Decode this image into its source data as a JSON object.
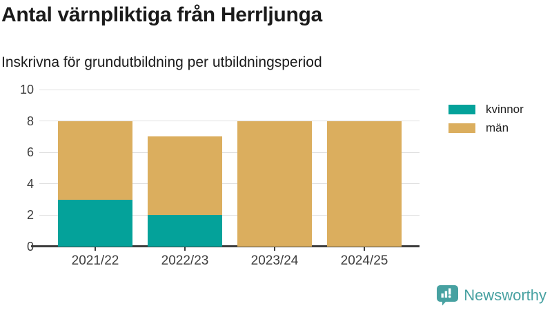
{
  "header": {
    "title": "Antal värnpliktiga från Herrljunga",
    "subtitle": "Inskrivna för grundutbildning per utbildningsperiod"
  },
  "chart_data": {
    "type": "bar",
    "stacked": true,
    "title": "Antal värnpliktiga från Herrljunga",
    "subtitle": "Inskrivna för grundutbildning per utbildningsperiod",
    "categories": [
      "2021/22",
      "2022/23",
      "2023/24",
      "2024/25"
    ],
    "series": [
      {
        "name": "kvinnor",
        "color": "#04a29a",
        "values": [
          3,
          2,
          0,
          0
        ]
      },
      {
        "name": "män",
        "color": "#dbae5e",
        "values": [
          5,
          5,
          8,
          8
        ]
      }
    ],
    "totals": [
      8,
      7,
      8,
      8
    ],
    "xlabel": "",
    "ylabel": "",
    "ylim": [
      0,
      10
    ],
    "yticks": [
      0,
      2,
      4,
      6,
      8,
      10
    ],
    "grid": true,
    "legend_position": "right",
    "colors": {
      "gridline": "#e0e0e0",
      "axis": "#3c3c3c",
      "tick_text": "#3d3d3d"
    }
  },
  "footer": {
    "brand": "Newsworthy",
    "brand_color": "#47a1a1"
  }
}
